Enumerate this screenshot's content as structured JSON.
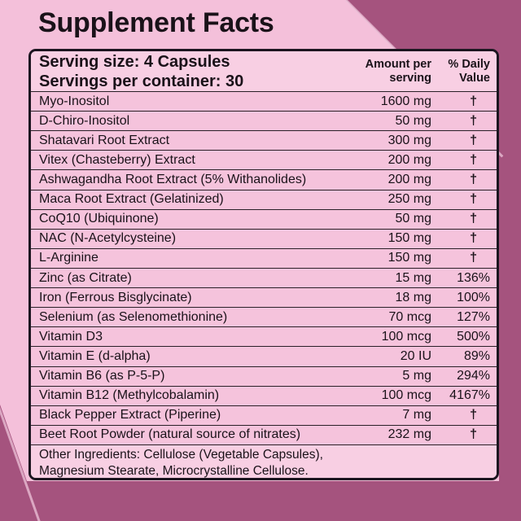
{
  "title": "Supplement Facts",
  "panel": {
    "serving_size": "Serving size: 4 Capsules",
    "servings_per_container": "Servings per container: 30",
    "columns": {
      "amount_line1": "Amount per",
      "amount_line2": "serving",
      "dv_line1": "% Daily",
      "dv_line2": "Value"
    },
    "dagger_symbol": "†",
    "rows": [
      {
        "name": "Myo-Inositol",
        "amount": "1600 mg",
        "dv": "†"
      },
      {
        "name": "D-Chiro-Inositol",
        "amount": "50 mg",
        "dv": "†"
      },
      {
        "name": "Shatavari Root Extract",
        "amount": "300 mg",
        "dv": "†"
      },
      {
        "name": "Vitex (Chasteberry) Extract",
        "amount": "200 mg",
        "dv": "†"
      },
      {
        "name": "Ashwagandha Root Extract (5% Withanolides)",
        "amount": "200 mg",
        "dv": "†"
      },
      {
        "name": "Maca Root Extract (Gelatinized)",
        "amount": "250 mg",
        "dv": "†"
      },
      {
        "name": "CoQ10 (Ubiquinone)",
        "amount": "50 mg",
        "dv": "†"
      },
      {
        "name": "NAC (N-Acetylcysteine)",
        "amount": "150 mg",
        "dv": "†"
      },
      {
        "name": "L-Arginine",
        "amount": "150 mg",
        "dv": "†"
      },
      {
        "name": "Zinc (as Citrate)",
        "amount": "15 mg",
        "dv": "136%"
      },
      {
        "name": "Iron (Ferrous Bisglycinate)",
        "amount": "18 mg",
        "dv": "100%"
      },
      {
        "name": "Selenium (as Selenomethionine)",
        "amount": "70 mcg",
        "dv": "127%"
      },
      {
        "name": "Vitamin D3",
        "amount": "100 mcg",
        "dv": "500%"
      },
      {
        "name": "Vitamin E (d-alpha)",
        "amount": "20 IU",
        "dv": "89%"
      },
      {
        "name": "Vitamin B6 (as P-5-P)",
        "amount": "5 mg",
        "dv": "294%"
      },
      {
        "name": "Vitamin B12 (Methylcobalamin)",
        "amount": "100 mcg",
        "dv": "4167%"
      },
      {
        "name": "Black Pepper Extract (Piperine)",
        "amount": "7 mg",
        "dv": "†"
      },
      {
        "name": "Beet Root Powder (natural source of nitrates)",
        "amount": "232 mg",
        "dv": "†"
      }
    ],
    "other_ingredients": [
      "Other Ingredients: Cellulose (Vegetable Capsules),",
      "Magnesium Stearate, Microcrystalline Cellulose."
    ]
  },
  "colors": {
    "background_pink": "#f4c0da",
    "accent_mauve": "#a5537e",
    "panel_light": "#f8cfe3",
    "row_pink": "#f5c3dc",
    "diag_highlight": "#eec3d9",
    "line_dark": "#1c1520",
    "line_mid": "#2a2028",
    "text_dark": "#1a1219"
  }
}
